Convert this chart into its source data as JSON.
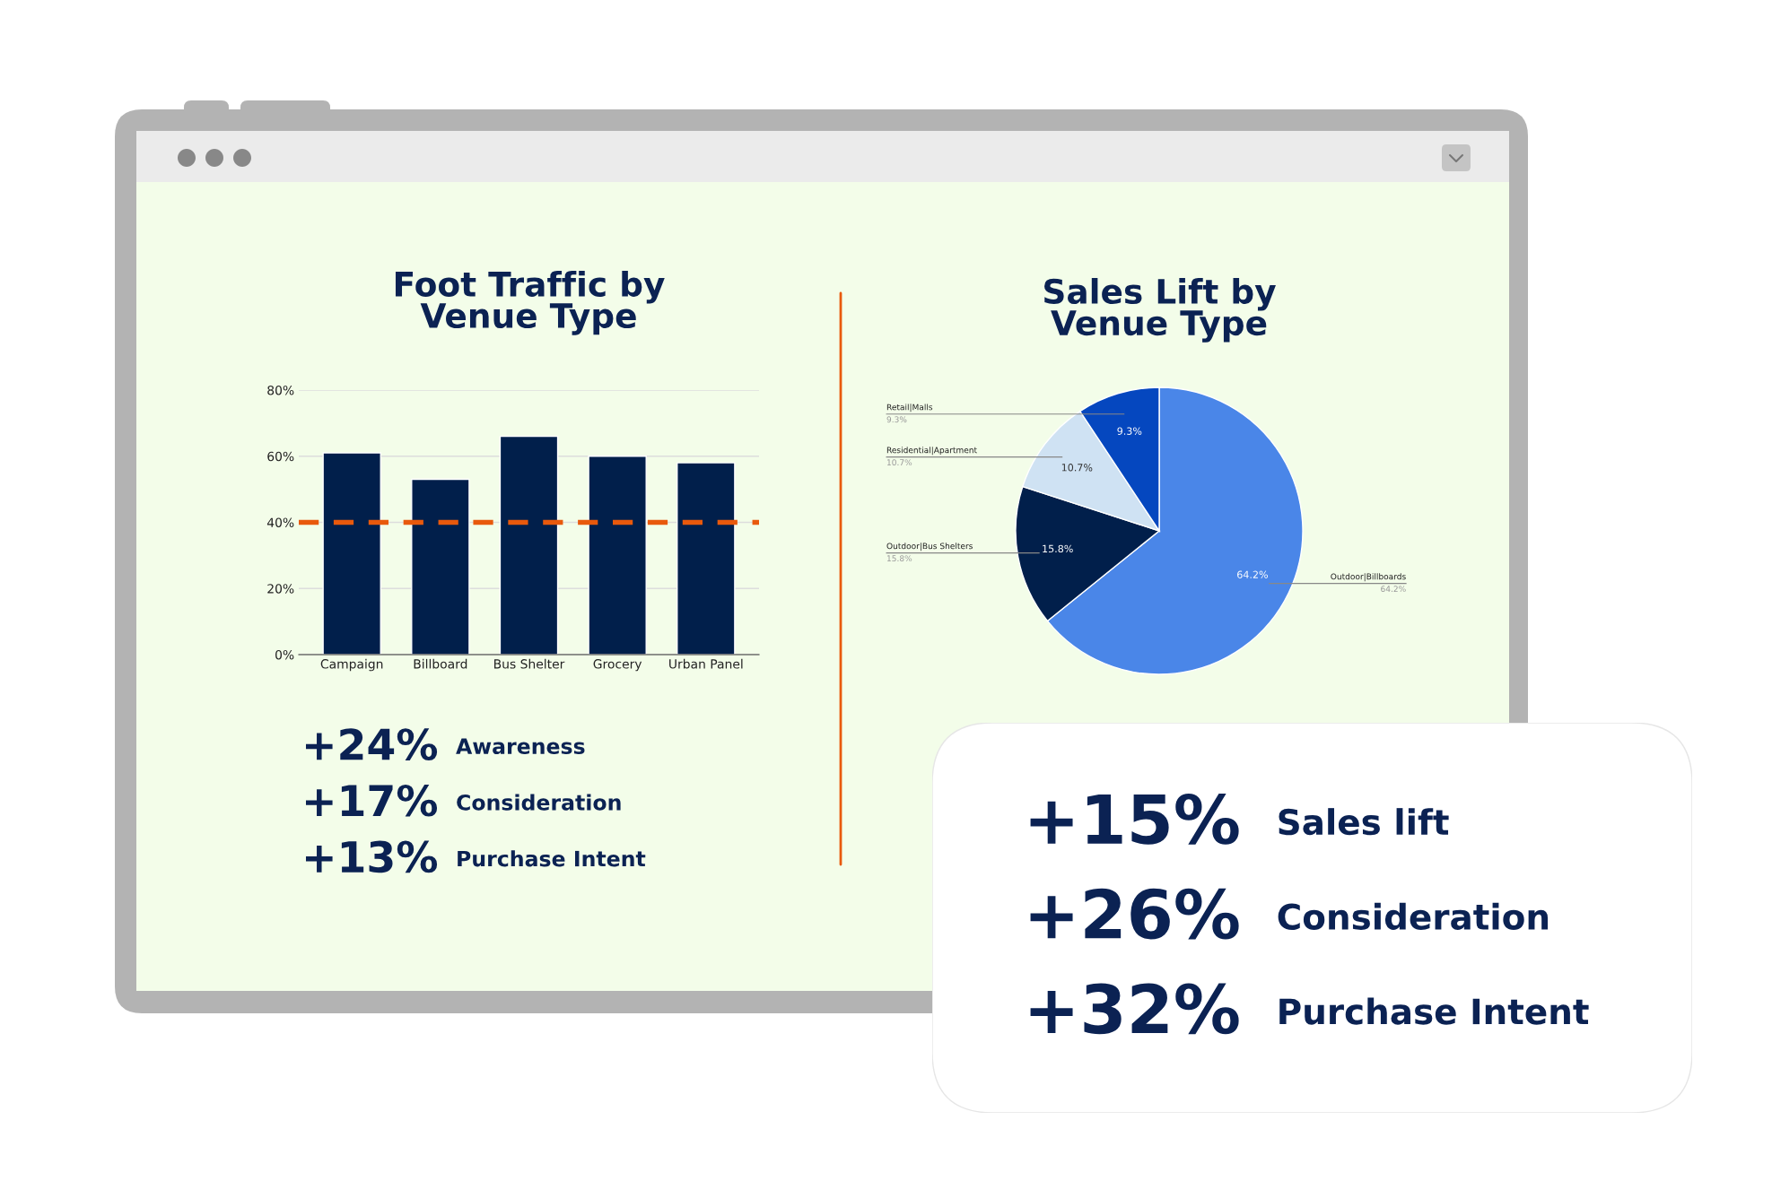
{
  "chart_data": [
    {
      "type": "bar",
      "title": "Foot Traffic by\nVenue Type",
      "categories": [
        "Campaign",
        "Billboard",
        "Bus Shelter",
        "Grocery",
        "Urban Panel"
      ],
      "values": [
        61,
        53,
        66,
        60,
        58
      ],
      "color": "#011f4b",
      "ylim": [
        0,
        80
      ],
      "yticks": [
        {
          "value": 0,
          "label": "0%"
        },
        {
          "value": 20,
          "label": "20%"
        },
        {
          "value": 40,
          "label": "40%"
        },
        {
          "value": 60,
          "label": "60%"
        },
        {
          "value": 80,
          "label": "80%"
        }
      ],
      "grid": "y",
      "ref_lines": [
        {
          "axis": "y",
          "value": 40,
          "label": null,
          "color": "#e8590c",
          "line_style": "dashed"
        }
      ]
    },
    {
      "type": "pie",
      "title": "Sales Lift by\nVenue Type",
      "categories": [
        "Outdoor|Billboards",
        "Outdoor|Bus Shelters",
        "Residential|Apartment",
        "Retail|Malls"
      ],
      "values": [
        64.2,
        15.8,
        10.7,
        9.3
      ],
      "colors": [
        "#4a86e8",
        "#011f4b",
        "#cfe2f3",
        "#0547bf"
      ],
      "value_labels": [
        "64.2%",
        "15.8%",
        "10.7%",
        "9.3%"
      ]
    },
    {
      "type": "other",
      "annotations": [
        "+24%",
        "Awareness",
        "+17%",
        "Consideration",
        "+13%",
        "Purchase Intent"
      ]
    },
    {
      "type": "other",
      "annotations": [
        "+15%",
        "Sales lift",
        "+26%",
        "Consideration",
        "+32%",
        "Purchase Intent"
      ]
    }
  ]
}
